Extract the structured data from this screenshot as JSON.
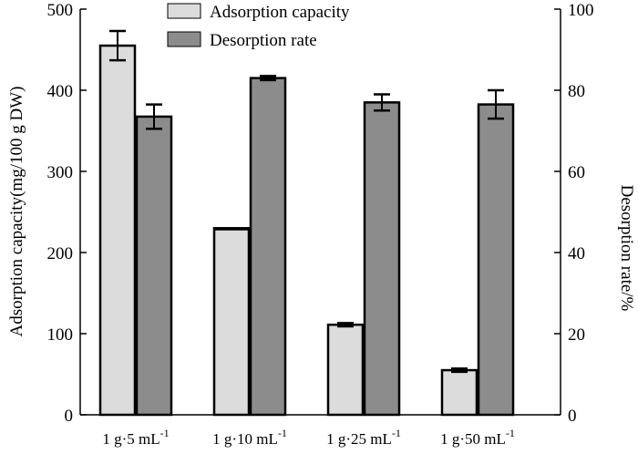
{
  "chart_data": {
    "type": "bar",
    "categories": [
      {
        "main": "1 g·5 mL",
        "sup": "-1"
      },
      {
        "main": "1 g·10 mL",
        "sup": "-1"
      },
      {
        "main": "1 g·25 mL",
        "sup": "-1"
      },
      {
        "main": "1 g·50 mL",
        "sup": "-1"
      }
    ],
    "series": [
      {
        "name": "Adsorption capacity",
        "axis": "left",
        "color": "#dcdcdc",
        "values": [
          455,
          230,
          111,
          55
        ],
        "errors": [
          18,
          0,
          2,
          2
        ]
      },
      {
        "name": "Desorption rate",
        "axis": "right",
        "color": "#8c8c8c",
        "values": [
          73.5,
          83,
          77,
          76.5
        ],
        "errors": [
          3,
          0.5,
          2,
          3.5
        ]
      }
    ],
    "left_axis": {
      "label": "Adsorption capacity(mg/100 g DW)",
      "min": 0,
      "max": 500,
      "ticks": [
        "0",
        "100",
        "200",
        "300",
        "400",
        "500"
      ]
    },
    "right_axis": {
      "label": "Desorption rate/%",
      "min": 0,
      "max": 100,
      "ticks": [
        "0",
        "20",
        "40",
        "60",
        "80",
        "100"
      ]
    }
  }
}
